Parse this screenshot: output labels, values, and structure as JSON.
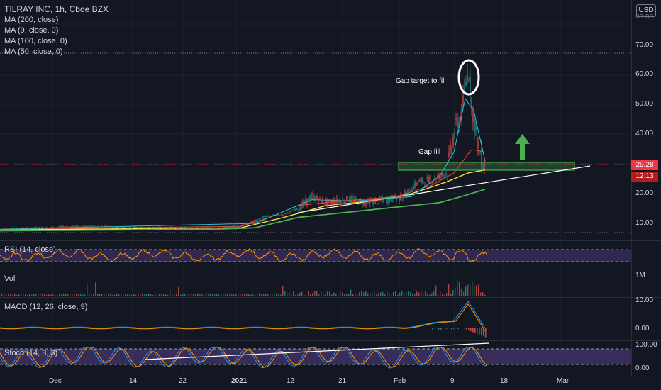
{
  "header": {
    "title": "TILRAY INC, 1h, Cboe BZX",
    "currency": "USD"
  },
  "main_legend": [
    "MA (200, close)",
    "MA (9, close, 0)",
    "MA (100, close, 0)",
    "MA (50, close, 0)"
  ],
  "price_axis": {
    "ticks": [
      "70.00",
      "60.00",
      "50.00",
      "40.00",
      "30.00",
      "20.00",
      "10.00"
    ],
    "top_partial": "80.00"
  },
  "price_badge": {
    "price": "29.28",
    "countdown": "12:13",
    "color": "#f23645"
  },
  "annotations": {
    "gap_target": "Gap target to fill",
    "gap_fill": "Gap fill"
  },
  "rsi": {
    "label": "RSI (14, close)",
    "color": "#ff9800"
  },
  "volume": {
    "label": "Vol",
    "tick": "1M"
  },
  "macd": {
    "label": "MACD (12, 26, close, 9)",
    "ticks": [
      "10.00",
      "0.00"
    ]
  },
  "stoch": {
    "label": "Stoch (14, 3, 3)",
    "ticks": [
      "100.00",
      "0.00"
    ]
  },
  "time_axis": [
    "Dec",
    "14",
    "22",
    "2021",
    "12",
    "21",
    "Feb",
    "9",
    "18",
    "Mar"
  ],
  "colors": {
    "ma200": "#4caf50",
    "ma100": "#ffeb3b",
    "ma50": "#f44336",
    "ma9": "#26c6da",
    "up": "#26a69a",
    "down": "#ef5350",
    "zone": "#4caf50",
    "arrow": "#4caf50"
  }
}
